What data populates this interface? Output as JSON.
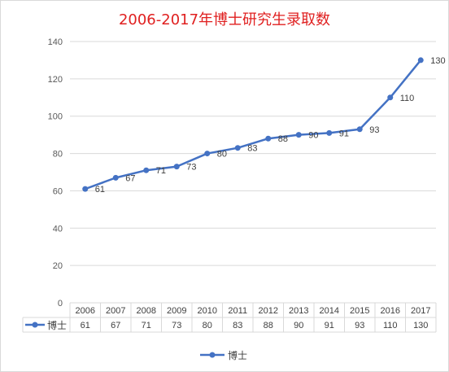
{
  "chart_data": {
    "type": "line",
    "title": "2006-2017年博士研究生录取数",
    "categories": [
      "2006",
      "2007",
      "2008",
      "2009",
      "2010",
      "2011",
      "2012",
      "2013",
      "2014",
      "2015",
      "2016",
      "2017"
    ],
    "series": [
      {
        "name": "博士",
        "values": [
          61,
          67,
          71,
          73,
          80,
          83,
          88,
          90,
          91,
          93,
          110,
          130
        ]
      }
    ],
    "ylim": [
      0,
      140
    ],
    "yticks": [
      0,
      20,
      40,
      60,
      80,
      100,
      120,
      140
    ],
    "grid": true,
    "legend_position": "bottom",
    "data_table": true,
    "series_color": "#4472c4"
  }
}
